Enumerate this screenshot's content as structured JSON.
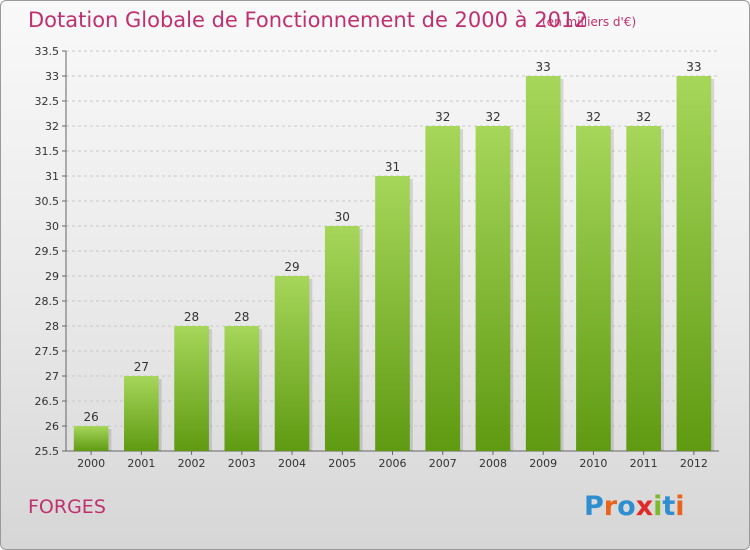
{
  "header": {
    "title": "Dotation Globale de Fonctionnement de 2000 à 2012",
    "subtitle": "(en milliers d'€)"
  },
  "footer": {
    "place": "FORGES",
    "logo_text": "Proxiti",
    "logo_colors": [
      "#2f8ecf",
      "#e8641c",
      "#2f8ecf",
      "#e02a2a",
      "#7db82f",
      "#2f8ecf",
      "#e8641c"
    ]
  },
  "colors": {
    "text_accent": "#c0306f",
    "bar_light": "#a6d65a",
    "bar_dark": "#5f9a12",
    "grid": "#c8c8c8"
  },
  "chart_data": {
    "type": "bar",
    "title": "Dotation Globale de Fonctionnement de 2000 à 2012",
    "subtitle": "(en milliers d'€)",
    "categories": [
      "2000",
      "2001",
      "2002",
      "2003",
      "2004",
      "2005",
      "2006",
      "2007",
      "2008",
      "2009",
      "2010",
      "2011",
      "2012"
    ],
    "values": [
      26,
      27,
      28,
      28,
      29,
      30,
      31,
      32,
      32,
      33,
      32,
      32,
      33
    ],
    "value_labels": [
      "26",
      "27",
      "28",
      "28",
      "29",
      "30",
      "31",
      "32",
      "32",
      "33",
      "32",
      "32",
      "33"
    ],
    "ylim": [
      25.5,
      33.5
    ],
    "yticks": [
      25.5,
      26,
      26.5,
      27,
      27.5,
      28,
      28.5,
      29,
      29.5,
      30,
      30.5,
      31,
      31.5,
      32,
      32.5,
      33,
      33.5
    ],
    "ytick_labels": [
      "25.5",
      "26",
      "26.5",
      "27",
      "27.5",
      "28",
      "28.5",
      "29",
      "29.5",
      "30",
      "30.5",
      "31",
      "31.5",
      "32",
      "32.5",
      "33",
      "33.5"
    ],
    "grid": true,
    "legend": false
  }
}
